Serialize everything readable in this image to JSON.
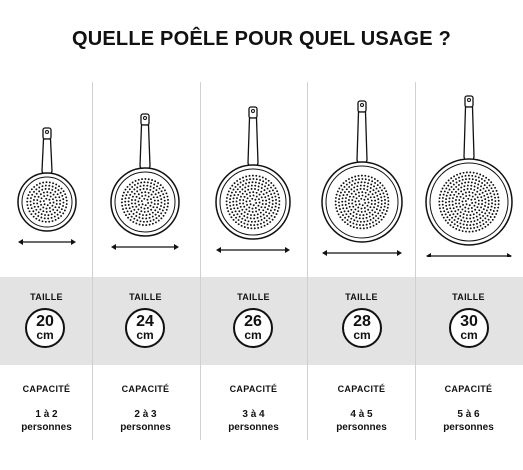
{
  "title": "QUELLE POÊLE POUR QUEL USAGE ?",
  "colors": {
    "band": "#e3e3e3",
    "ink": "#111111",
    "divider": "#d0d0d0"
  },
  "columns": [
    {
      "size_label": "TAILLE",
      "size_value": "20",
      "size_unit": "cm",
      "capacity_label": "CAPACITÉ",
      "capacity_value": "1 à 2",
      "capacity_unit": "personnes"
    },
    {
      "size_label": "TAILLE",
      "size_value": "24",
      "size_unit": "cm",
      "capacity_label": "CAPACITÉ",
      "capacity_value": "2 à 3",
      "capacity_unit": "personnes"
    },
    {
      "size_label": "TAILLE",
      "size_value": "26",
      "size_unit": "cm",
      "capacity_label": "CAPACITÉ",
      "capacity_value": "3 à 4",
      "capacity_unit": "personnes"
    },
    {
      "size_label": "TAILLE",
      "size_value": "28",
      "size_unit": "cm",
      "capacity_label": "CAPACITÉ",
      "capacity_value": "4 à 5",
      "capacity_unit": "personnes"
    },
    {
      "size_label": "TAILLE",
      "size_value": "30",
      "size_unit": "cm",
      "capacity_label": "CAPACITÉ",
      "capacity_value": "5 à 6",
      "capacity_unit": "personnes"
    }
  ],
  "icons": {
    "pan": "frying-pan-icon",
    "arrow": "double-arrow-icon"
  }
}
